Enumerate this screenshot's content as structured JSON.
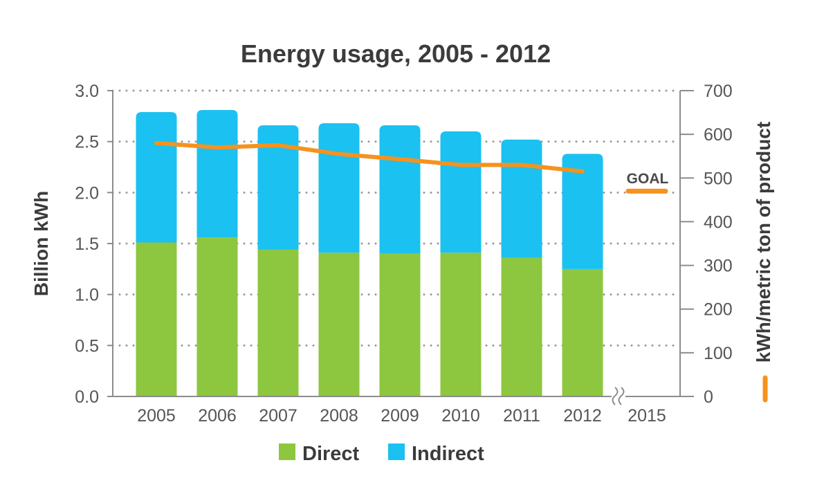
{
  "chart_data": {
    "type": "bar",
    "stacked": true,
    "title": "Energy usage, 2005 - 2012",
    "ylabel": "Billion kWh",
    "y2label": "kWh/metric ton of product",
    "categories": [
      "2005",
      "2006",
      "2007",
      "2008",
      "2009",
      "2010",
      "2011",
      "2012",
      "2015"
    ],
    "ylim": [
      0,
      3.0
    ],
    "y2lim": [
      0,
      700
    ],
    "yticks": [
      "0.0",
      "0.5",
      "1.0",
      "1.5",
      "2.0",
      "2.5",
      "3.0"
    ],
    "y2ticks": [
      "0",
      "100",
      "200",
      "300",
      "400",
      "500",
      "600",
      "700"
    ],
    "series": [
      {
        "name": "Direct",
        "color": "#8dc63f",
        "values": [
          1.51,
          1.56,
          1.44,
          1.41,
          1.4,
          1.41,
          1.36,
          1.25,
          null
        ]
      },
      {
        "name": "Indirect",
        "color": "#1ac1f1",
        "values": [
          1.28,
          1.25,
          1.22,
          1.27,
          1.26,
          1.19,
          1.16,
          1.13,
          null
        ]
      }
    ],
    "line": {
      "color": "#f6921e",
      "axis": "right",
      "values": [
        580,
        570,
        575,
        555,
        543,
        530,
        530,
        515,
        null
      ]
    },
    "goal": {
      "label": "GOAL",
      "value": 470,
      "category": "2015",
      "color": "#f6921e"
    },
    "grid": "dotted horizontal",
    "axis_break_after": "2012",
    "legend_position": "bottom-center"
  }
}
